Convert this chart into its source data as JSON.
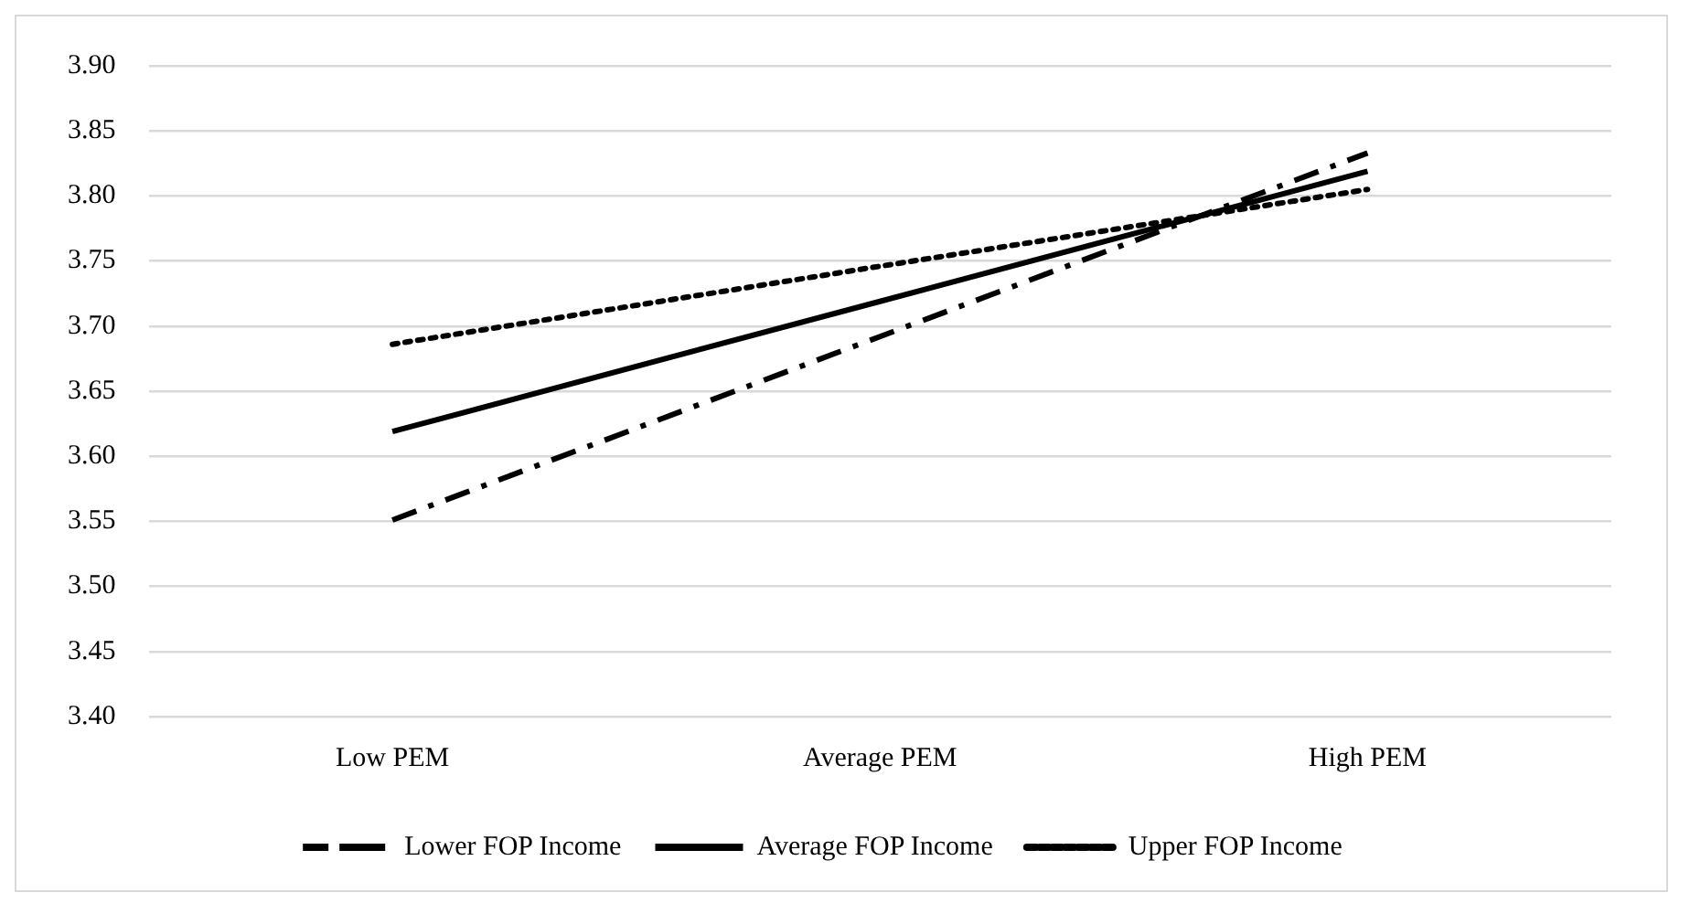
{
  "chart_data": {
    "type": "line",
    "categories": [
      "Low PEM",
      "Average PEM",
      "High PEM"
    ],
    "series": [
      {
        "name": "Lower FOP Income",
        "color": "#000000",
        "line_style": "dashed",
        "values": [
          3.551,
          3.692,
          3.833
        ]
      },
      {
        "name": "Average FOP Income",
        "color": "#000000",
        "line_style": "solid",
        "values": [
          3.619,
          3.719,
          3.819
        ]
      },
      {
        "name": "Upper FOP Income",
        "color": "#000000",
        "line_style": "dotted",
        "values": [
          3.686,
          3.746,
          3.805
        ]
      }
    ],
    "ylim": [
      3.4,
      3.9
    ],
    "yticks": [
      {
        "value": 3.4,
        "label": "3.40"
      },
      {
        "value": 3.45,
        "label": "3.45"
      },
      {
        "value": 3.5,
        "label": "3.50"
      },
      {
        "value": 3.55,
        "label": "3.55"
      },
      {
        "value": 3.6,
        "label": "3.60"
      },
      {
        "value": 3.65,
        "label": "3.65"
      },
      {
        "value": 3.7,
        "label": "3.70"
      },
      {
        "value": 3.75,
        "label": "3.75"
      },
      {
        "value": 3.8,
        "label": "3.80"
      },
      {
        "value": 3.85,
        "label": "3.85"
      },
      {
        "value": 3.9,
        "label": "3.90"
      }
    ],
    "grid": "y",
    "legend": "bottom",
    "marker": "none"
  }
}
